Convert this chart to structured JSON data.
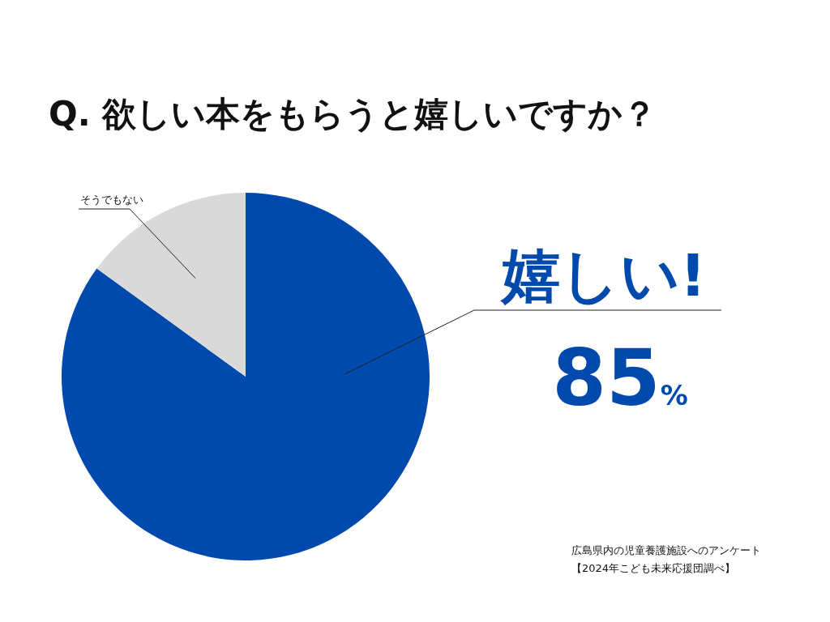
{
  "chart_data": {
    "type": "pie",
    "title": "Q. 欲しい本をもらうと嬉しいですか？",
    "categories": [
      "嬉しい!",
      "そうでもない"
    ],
    "values": [
      85,
      15
    ],
    "colors": [
      "#004aad",
      "#d9d9d9"
    ],
    "value_labels": [
      "85%",
      null
    ],
    "annotations": [
      "広島県内の児童養護施設へのアンケート",
      "【2024年こども未来応援団調べ】"
    ]
  }
}
